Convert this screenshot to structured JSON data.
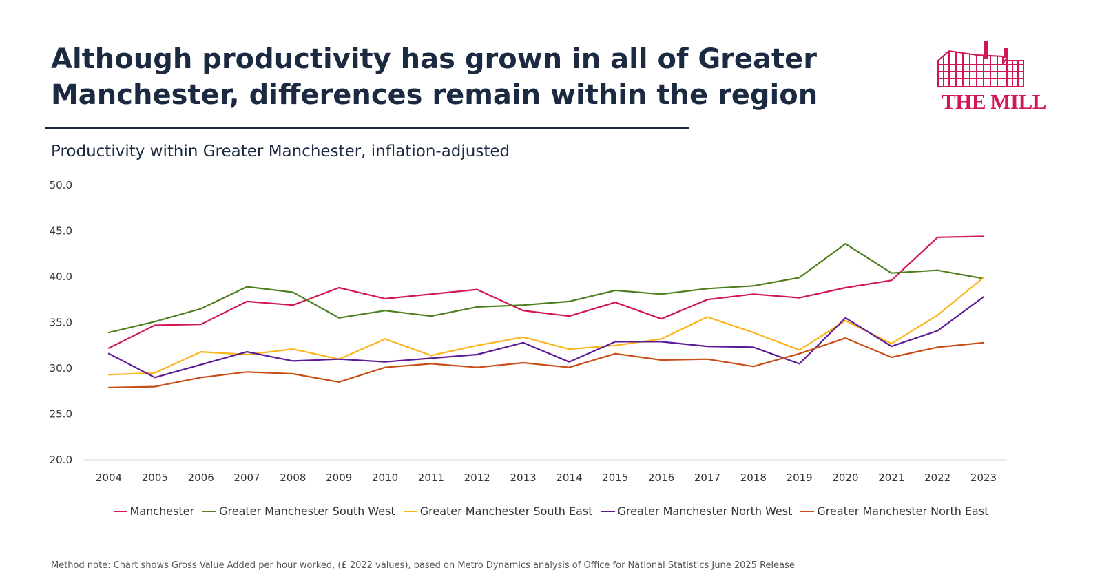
{
  "header": {
    "title": "Although productivity has grown in all of Greater Manchester, differences remain within the region",
    "subtitle": "Productivity within Greater Manchester, inflation-adjusted"
  },
  "logo": {
    "text": "THE MILL",
    "color": "#d11653"
  },
  "footer": {
    "note": "Method note: Chart shows Gross Value Added per hour worked, (£ 2022 values), based on Metro Dynamics analysis of Office for National Statistics June 2025 Release"
  },
  "chart_data": {
    "type": "line",
    "title": "Productivity within Greater Manchester, inflation-adjusted",
    "xlabel": "",
    "ylabel": "",
    "ylim": [
      20,
      50
    ],
    "yticks": [
      "20.0",
      "25.0",
      "30.0",
      "35.0",
      "40.0",
      "45.0",
      "50.0"
    ],
    "grid": false,
    "legend_position": "bottom",
    "categories": [
      "2004",
      "2005",
      "2006",
      "2007",
      "2008",
      "2009",
      "2010",
      "2011",
      "2012",
      "2013",
      "2014",
      "2015",
      "2016",
      "2017",
      "2018",
      "2019",
      "2020",
      "2021",
      "2022",
      "2023"
    ],
    "series": [
      {
        "name": "Manchester",
        "color": "#d11653",
        "values": [
          32.2,
          34.7,
          34.8,
          37.3,
          36.9,
          38.8,
          37.6,
          38.1,
          38.6,
          36.3,
          35.7,
          37.2,
          35.4,
          37.5,
          38.1,
          37.7,
          38.8,
          39.6,
          44.3,
          44.4
        ]
      },
      {
        "name": "Greater Manchester South West",
        "color": "#4d7f1e",
        "values": [
          33.9,
          35.1,
          36.5,
          38.9,
          38.3,
          35.5,
          36.3,
          35.7,
          36.7,
          36.9,
          37.3,
          38.5,
          38.1,
          38.7,
          39.0,
          39.9,
          43.6,
          40.4,
          40.7,
          39.8
        ]
      },
      {
        "name": "Greater Manchester South East",
        "color": "#fbb41a",
        "values": [
          29.3,
          29.5,
          31.8,
          31.5,
          32.1,
          31.0,
          33.2,
          31.4,
          32.5,
          33.4,
          32.1,
          32.5,
          33.2,
          35.6,
          33.9,
          32.0,
          35.2,
          32.7,
          35.8,
          39.9
        ]
      },
      {
        "name": "Greater Manchester North West",
        "color": "#5b1b96",
        "values": [
          31.6,
          29.0,
          30.4,
          31.8,
          30.8,
          31.0,
          30.7,
          31.1,
          31.5,
          32.8,
          30.7,
          32.9,
          32.9,
          32.4,
          32.3,
          30.5,
          35.5,
          32.4,
          34.1,
          37.8
        ]
      },
      {
        "name": "Greater Manchester North East",
        "color": "#c74e17",
        "values": [
          27.9,
          28.0,
          29.0,
          29.6,
          29.4,
          28.5,
          30.1,
          30.5,
          30.1,
          30.6,
          30.1,
          31.6,
          30.9,
          31.0,
          30.2,
          31.6,
          33.3,
          31.2,
          32.3,
          32.8
        ]
      }
    ]
  }
}
